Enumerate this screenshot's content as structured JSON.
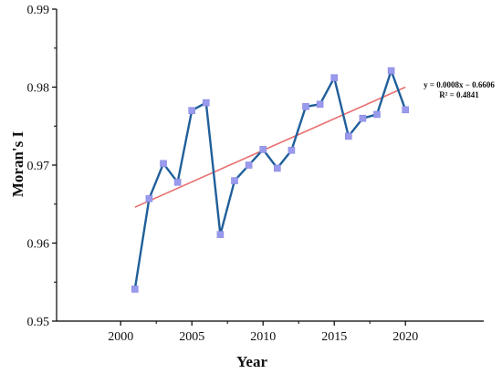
{
  "chart_data": {
    "type": "line",
    "title": "",
    "xlabel": "Year",
    "ylabel": "Moran's I",
    "xlim": [
      1995.5,
      2025.5
    ],
    "ylim": [
      0.95,
      0.99
    ],
    "x_ticks": [
      2000,
      2005,
      2010,
      2015,
      2020
    ],
    "x_tick_labels": [
      "2000",
      "2005",
      "2010",
      "2015",
      "2020"
    ],
    "y_ticks": [
      0.95,
      0.96,
      0.97,
      0.98,
      0.99
    ],
    "y_tick_labels": [
      "0.95",
      "0.96",
      "0.97",
      "0.98",
      "0.99"
    ],
    "grid": false,
    "series": [
      {
        "type": "line",
        "x": [
          2001,
          2002,
          2003,
          2004,
          2005,
          2006,
          2007,
          2008,
          2009,
          2010,
          2011,
          2012,
          2013,
          2014,
          2015,
          2016,
          2017,
          2018,
          2019,
          2020
        ],
        "y": [
          0.9541,
          0.9657,
          0.9702,
          0.9678,
          0.977,
          0.978,
          0.9611,
          0.968,
          0.97,
          0.972,
          0.9696,
          0.9719,
          0.9775,
          0.9778,
          0.9812,
          0.9737,
          0.976,
          0.9765,
          0.9821,
          0.9771
        ],
        "line_color": "#1f5f9a",
        "marker": "square",
        "marker_color": "#9999ee"
      },
      {
        "type": "trendline",
        "x": [
          2001,
          2020
        ],
        "y": [
          0.9646,
          0.98
        ],
        "line_color": "#e86f6f"
      }
    ],
    "annotations": [
      "y = 0.0008x − 0.6606",
      "R² = 0.4841"
    ]
  }
}
